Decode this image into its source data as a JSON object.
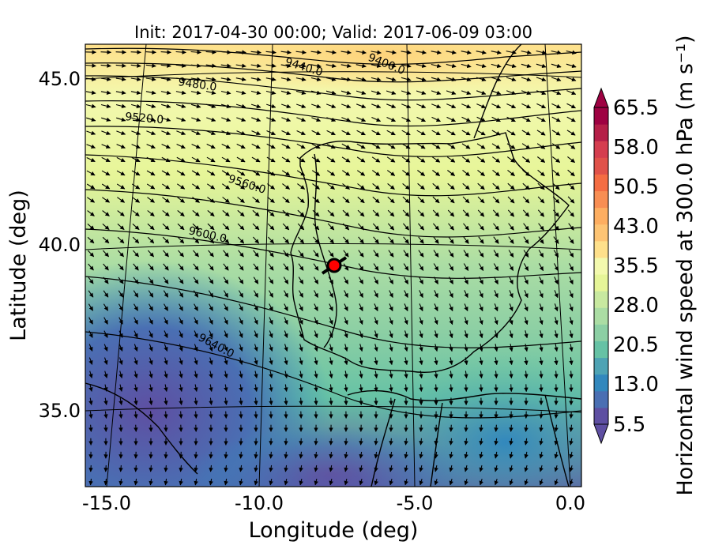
{
  "figure": {
    "title": "Init: 2017-04-30 00:00; Valid: 2017-06-09 03:00",
    "xlabel": "Longitude (deg)",
    "ylabel": "Latitude (deg)",
    "x_ticks": [
      "-15.0",
      "-10.0",
      "-5.0",
      "0.0"
    ],
    "y_ticks": [
      "45.0",
      "40.0",
      "35.0"
    ]
  },
  "map_extent": {
    "lon": [
      -16.0,
      0.3
    ],
    "lat": [
      33.0,
      46.2
    ]
  },
  "colorbar": {
    "label": "Horizontal wind speed at 300.0 hPa (m s⁻¹)",
    "ticks": [
      "65.5",
      "58.0",
      "50.5",
      "43.0",
      "35.5",
      "28.0",
      "20.5",
      "13.0",
      "5.5"
    ],
    "range": [
      5.5,
      65.5
    ],
    "extend": "both",
    "colors": [
      "#5e4fa2",
      "#4a6fb3",
      "#3288bd",
      "#4ea3b4",
      "#66c2a5",
      "#8ccfa4",
      "#abdda4",
      "#c8e9a0",
      "#e6f598",
      "#f3f9ae",
      "#fee08b",
      "#fdc474",
      "#fdae61",
      "#f88e53",
      "#f46d43",
      "#e0524a",
      "#d53e4f",
      "#b51f48",
      "#9e0142"
    ]
  },
  "contours": {
    "labels": [
      "9400.0",
      "9440.0",
      "9480.0",
      "9520.0",
      "9560.0",
      "9600.0",
      "9640.0"
    ]
  },
  "marker": {
    "label": "location-marker",
    "lon": -7.6,
    "lat": 39.3,
    "color": "#ff0000"
  }
}
